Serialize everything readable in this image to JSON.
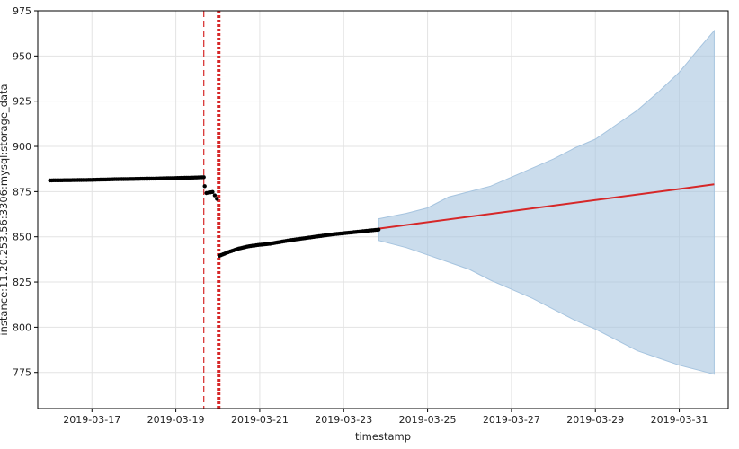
{
  "chart_data": {
    "type": "line",
    "title": "",
    "xlabel": "timestamp",
    "ylabel": "instance:11.20.253.56:3306:mysql:storage_data",
    "xlim": [
      "2019-03-15 17:00",
      "2019-04-01 04:00"
    ],
    "ylim": [
      755,
      975
    ],
    "grid": true,
    "x_ticks": [
      "2019-03-17",
      "2019-03-19",
      "2019-03-21",
      "2019-03-23",
      "2019-03-25",
      "2019-03-27",
      "2019-03-29",
      "2019-03-31"
    ],
    "y_ticks": [
      775,
      800,
      825,
      850,
      875,
      900,
      925,
      950,
      975
    ],
    "series": [
      {
        "name": "",
        "kind": "observed",
        "color": "#000000",
        "points": [
          [
            "2019-03-16 00:00",
            881.2
          ],
          [
            "2019-03-16 12:00",
            881.3
          ],
          [
            "2019-03-17 00:00",
            881.5
          ],
          [
            "2019-03-17 12:00",
            881.8
          ],
          [
            "2019-03-18 00:00",
            882.0
          ],
          [
            "2019-03-18 12:00",
            882.2
          ],
          [
            "2019-03-19 00:00",
            882.5
          ],
          [
            "2019-03-19 12:00",
            882.8
          ],
          [
            "2019-03-19 16:00",
            883.0
          ],
          [
            "2019-03-19 16:30",
            878.0
          ],
          [
            "2019-03-19 17:30",
            874.2
          ],
          [
            "2019-03-19 21:00",
            874.8
          ],
          [
            "2019-03-19 23:30",
            871.0
          ],
          [
            "2019-03-20 01:00",
            839.5
          ],
          [
            "2019-03-20 06:00",
            841.5
          ],
          [
            "2019-03-20 12:00",
            843.5
          ],
          [
            "2019-03-20 18:00",
            844.8
          ],
          [
            "2019-03-21 00:00",
            845.6
          ],
          [
            "2019-03-21 06:00",
            846.2
          ],
          [
            "2019-03-21 12:00",
            847.2
          ],
          [
            "2019-03-21 18:00",
            848.2
          ],
          [
            "2019-03-22 00:00",
            849.0
          ],
          [
            "2019-03-22 06:00",
            849.8
          ],
          [
            "2019-03-22 12:00",
            850.6
          ],
          [
            "2019-03-22 18:00",
            851.4
          ],
          [
            "2019-03-23 00:00",
            852.0
          ],
          [
            "2019-03-23 06:00",
            852.6
          ],
          [
            "2019-03-23 12:00",
            853.2
          ],
          [
            "2019-03-23 20:00",
            854.0
          ]
        ]
      },
      {
        "name": "",
        "kind": "forecast",
        "color": "#d62728",
        "points": [
          [
            "2019-03-23 20:00",
            854.5
          ],
          [
            "2019-03-31 20:00",
            879.0
          ]
        ]
      },
      {
        "name": "",
        "kind": "uncertainty-band",
        "color": "#a6c4df",
        "points": [
          [
            "2019-03-23 20:00",
            848,
            860
          ],
          [
            "2019-03-24 12:00",
            844,
            863
          ],
          [
            "2019-03-25 00:00",
            840,
            866
          ],
          [
            "2019-03-25 12:00",
            836,
            872
          ],
          [
            "2019-03-26 00:00",
            832,
            875
          ],
          [
            "2019-03-26 12:00",
            826,
            878
          ],
          [
            "2019-03-27 00:00",
            821,
            883
          ],
          [
            "2019-03-27 12:00",
            816,
            888
          ],
          [
            "2019-03-28 00:00",
            810,
            893
          ],
          [
            "2019-03-28 12:00",
            804,
            899
          ],
          [
            "2019-03-29 00:00",
            799,
            904
          ],
          [
            "2019-03-29 12:00",
            793,
            912
          ],
          [
            "2019-03-30 00:00",
            787,
            920
          ],
          [
            "2019-03-30 12:00",
            783,
            930
          ],
          [
            "2019-03-31 00:00",
            779,
            941
          ],
          [
            "2019-03-31 12:00",
            776,
            955
          ],
          [
            "2019-03-31 20:00",
            774,
            964
          ]
        ]
      }
    ],
    "annotations": [
      {
        "type": "vline",
        "x": "2019-03-19 16:00",
        "style": "thin-dashed",
        "color": "#d62728"
      },
      {
        "type": "vline",
        "x": "2019-03-20 00:30",
        "style": "thick-dotted",
        "color": "#d62728"
      }
    ]
  }
}
